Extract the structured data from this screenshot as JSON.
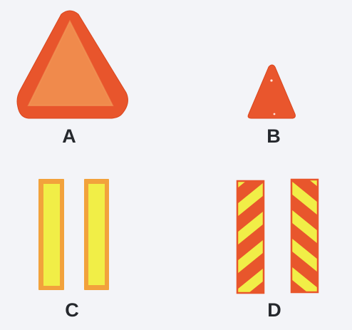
{
  "colors": {
    "background": "#f3f4f8",
    "red_orange": "#e8552c",
    "orange_fill": "#f08a4c",
    "amber_border": "#f2a23c",
    "yellow": "#f1ee47",
    "label": "#25282d"
  },
  "signs": [
    {
      "label": "A",
      "shape": "large-triangle"
    },
    {
      "label": "B",
      "shape": "small-triangle"
    },
    {
      "label": "C",
      "shape": "yellow-strips"
    },
    {
      "label": "D",
      "shape": "striped-strips"
    }
  ]
}
